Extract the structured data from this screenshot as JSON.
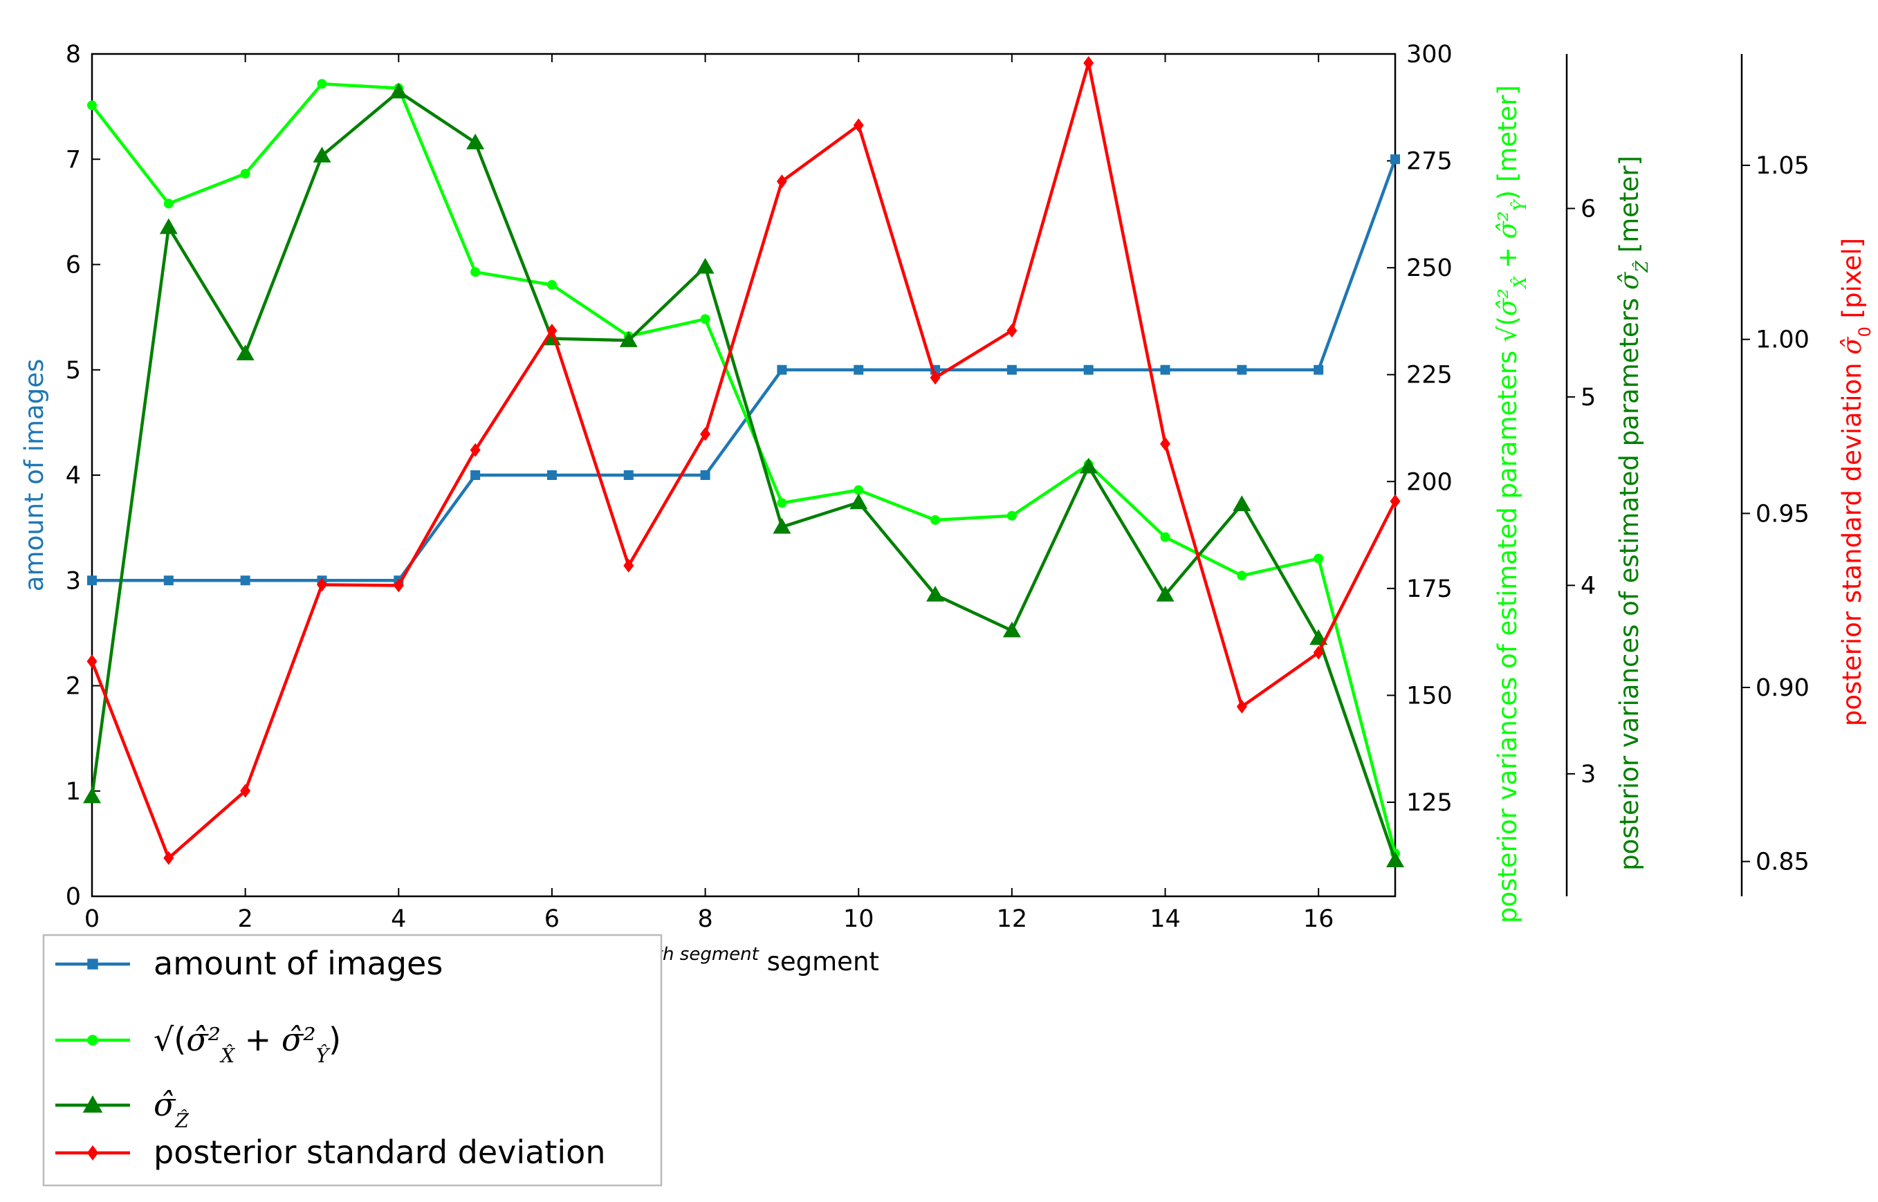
{
  "chart_data": {
    "type": "line",
    "xlabel": "the i^th segment",
    "x": [
      0,
      1,
      2,
      3,
      4,
      5,
      6,
      7,
      8,
      9,
      10,
      11,
      12,
      13,
      14,
      15,
      16,
      17
    ],
    "xlim": [
      0,
      17
    ],
    "xticks": [
      "0",
      "2",
      "4",
      "6",
      "8",
      "10",
      "12",
      "14",
      "16"
    ],
    "axes": {
      "left": {
        "label": "amount of images",
        "lim": [
          0,
          8
        ],
        "ticks": [
          "0",
          "1",
          "2",
          "3",
          "4",
          "5",
          "6",
          "7",
          "8"
        ],
        "color": "#1f77b4"
      },
      "right1": {
        "label": "posterior variances of estimated parameters",
        "label_math": "sqrt(σ̂²_X̂ + σ̂²_Ŷ)",
        "label_unit": "[meter]",
        "lim": [
          103,
          300
        ],
        "ticks": [
          "125",
          "150",
          "175",
          "200",
          "225",
          "250",
          "275",
          "300"
        ],
        "color": "#00ff00"
      },
      "right2": {
        "label": "posterior variances of estimated parameters",
        "label_math": "σ̂_Ẑ",
        "label_unit": "[meter]",
        "lim": [
          2.35,
          6.82
        ],
        "ticks": [
          "3",
          "4",
          "5",
          "6"
        ],
        "color": "#008000"
      },
      "right3": {
        "label": "posterior standard deviation",
        "label_math": "σ̂₀",
        "label_unit": "[pixel]",
        "lim": [
          0.84,
          1.082
        ],
        "ticks": [
          "0.85",
          "0.90",
          "0.95",
          "1.00",
          "1.05"
        ],
        "color": "#ff0000"
      }
    },
    "series": [
      {
        "name": "amount of images",
        "axis": "left",
        "color": "#1f77b4",
        "marker": "square",
        "values": [
          3,
          3,
          3,
          3,
          3,
          4,
          4,
          4,
          4,
          5,
          5,
          5,
          5,
          5,
          5,
          5,
          5,
          7
        ]
      },
      {
        "name": "sqrt(σ̂²_X̂ + σ̂²_Ŷ)",
        "axis": "right1",
        "color": "#00ff00",
        "marker": "circle",
        "values": [
          288,
          265,
          272,
          293,
          292,
          249,
          246,
          234,
          238,
          195,
          198,
          191,
          192,
          204,
          187,
          178,
          182,
          113
        ]
      },
      {
        "name": "σ̂_Ẑ",
        "axis": "right2",
        "color": "#008000",
        "marker": "triangle",
        "values": [
          2.88,
          5.9,
          5.23,
          6.28,
          6.62,
          6.35,
          5.31,
          5.3,
          5.69,
          4.31,
          4.44,
          3.95,
          3.76,
          4.63,
          3.95,
          4.43,
          3.72,
          2.54
        ]
      },
      {
        "name": "posterior standard deviation",
        "axis": "right3",
        "color": "#ff0000",
        "marker": "diamond",
        "values": [
          0.9075,
          0.851,
          0.8703,
          0.9295,
          0.9293,
          0.9682,
          1.0025,
          0.935,
          0.9728,
          1.0454,
          1.0615,
          0.989,
          1.0025,
          1.0794,
          0.97,
          0.8945,
          0.91,
          0.9535
        ]
      }
    ],
    "legend": {
      "placement": "bottom-left",
      "entries": [
        "amount of images",
        "sqrt(σ̂²_X̂ + σ̂²_Ŷ)",
        "σ̂_Ẑ",
        "posterior standard deviation"
      ]
    },
    "grid": false
  }
}
